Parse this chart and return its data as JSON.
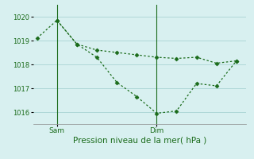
{
  "line1_x": [
    0,
    1,
    2,
    3,
    4,
    5,
    6,
    7,
    8,
    9,
    10
  ],
  "line1_y": [
    1019.1,
    1019.85,
    1018.85,
    1018.3,
    1017.25,
    1016.65,
    1015.95,
    1016.05,
    1017.2,
    1017.1,
    1018.15
  ],
  "line2_x": [
    1,
    2,
    3,
    4,
    5,
    6,
    7,
    8,
    9,
    10
  ],
  "line2_y": [
    1019.85,
    1018.85,
    1018.6,
    1018.5,
    1018.4,
    1018.3,
    1018.25,
    1018.3,
    1018.05,
    1018.15
  ],
  "color": "#1a6b1a",
  "bg_color": "#d8f0f0",
  "xlabel": "Pression niveau de la mer( hPa )",
  "ylim": [
    1015.5,
    1020.5
  ],
  "yticks": [
    1016,
    1017,
    1018,
    1019,
    1020
  ],
  "sam_x": 1.0,
  "dim_x": 6.0,
  "xlim": [
    -0.2,
    10.5
  ]
}
